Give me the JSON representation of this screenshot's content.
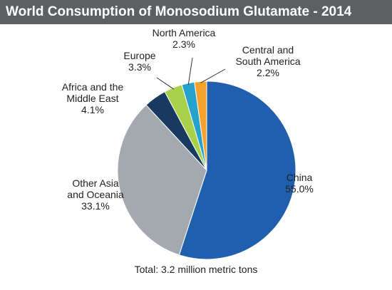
{
  "header": {
    "title": "World Consumption of Monosodium Glutamate - 2014"
  },
  "footer": {
    "note": "Total: 3.2 million metric tons"
  },
  "chart_data": {
    "type": "pie",
    "title": "World Consumption of Monosodium Glutamate - 2014",
    "legend": "none",
    "slices": [
      {
        "label_lines": [
          "China",
          "55.0%"
        ],
        "value": 55.0,
        "color": "#1f5fad"
      },
      {
        "label_lines": [
          "Other Asia",
          "and Oceania",
          "33.1%"
        ],
        "value": 33.1,
        "color": "#a3a9ae"
      },
      {
        "label_lines": [
          "Africa and the",
          "Middle East",
          "4.1%"
        ],
        "value": 4.1,
        "color": "#173a5e"
      },
      {
        "label_lines": [
          "Europe",
          "3.3%"
        ],
        "value": 3.3,
        "color": "#a8d04a"
      },
      {
        "label_lines": [
          "North America",
          "2.3%"
        ],
        "value": 2.3,
        "color": "#25a2cb"
      },
      {
        "label_lines": [
          "Central and",
          "South America",
          "2.2%"
        ],
        "value": 2.2,
        "color": "#f3a32c"
      }
    ],
    "footnote": "Total: 3.2 million metric tons"
  }
}
